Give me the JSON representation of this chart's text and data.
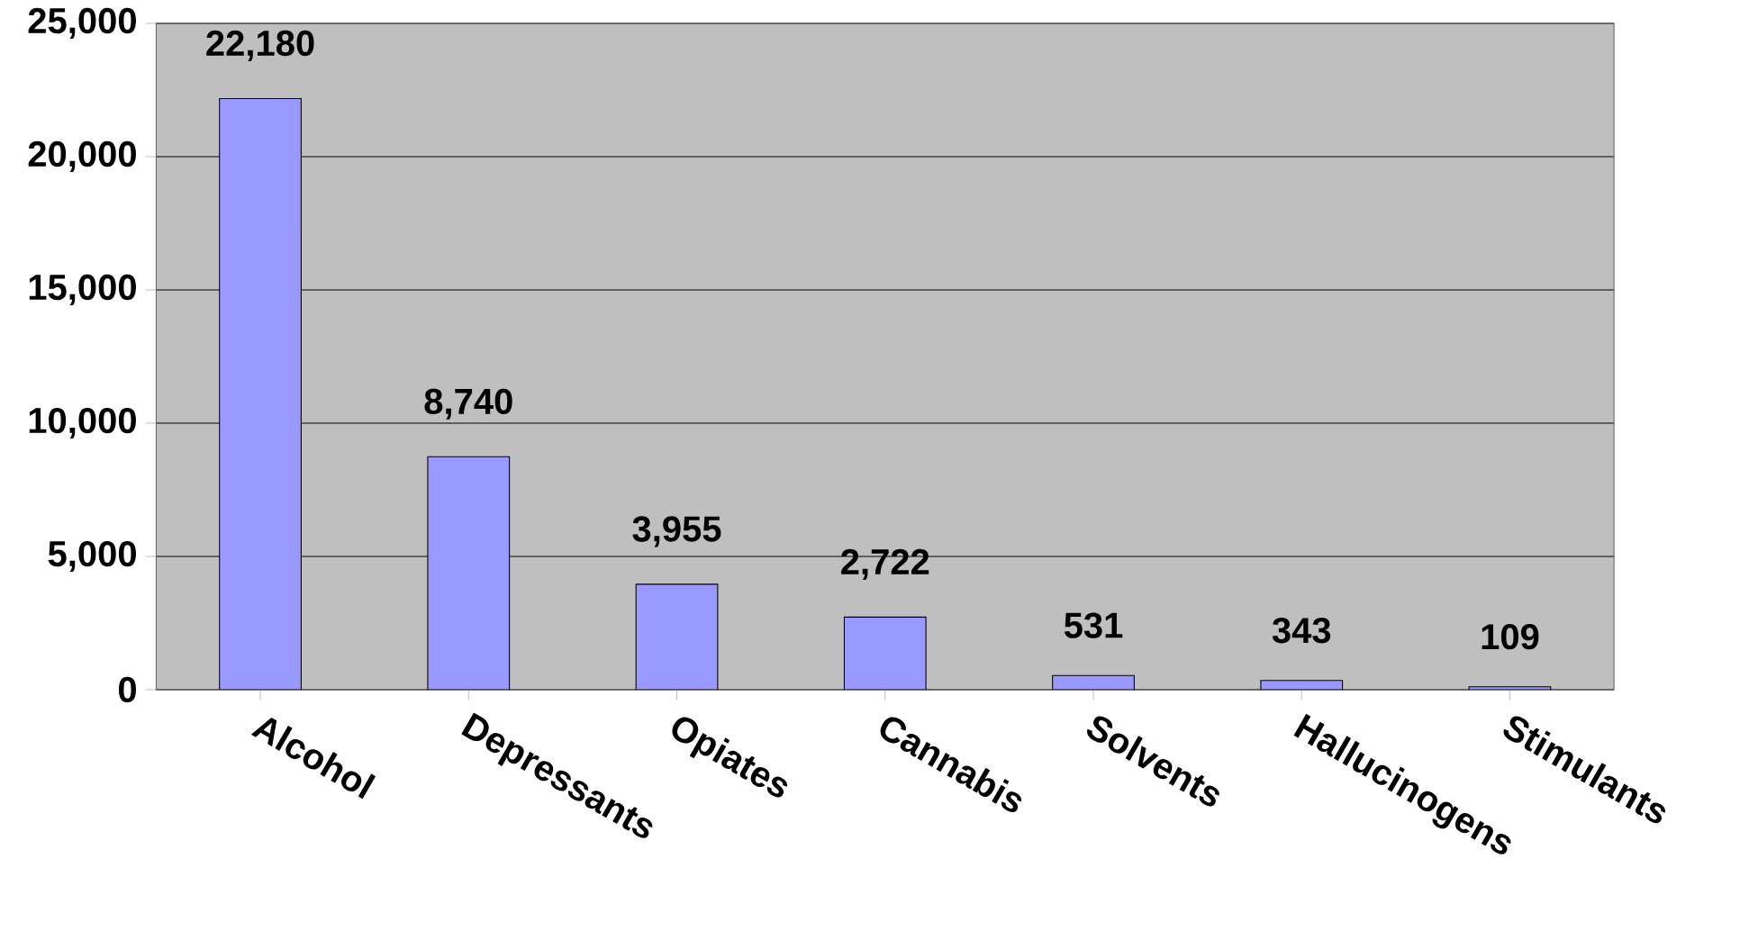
{
  "chart_data": {
    "type": "bar",
    "categories": [
      "Alcohol",
      "Depressants",
      "Opiates",
      "Cannabis",
      "Solvents",
      "Hallucinogens",
      "Stimulants"
    ],
    "values": [
      22180,
      8740,
      3955,
      2722,
      531,
      343,
      109
    ],
    "value_labels": [
      "22,180",
      "8,740",
      "3,955",
      "2,722",
      "531",
      "343",
      "109"
    ],
    "color": "#9999ff",
    "ylim": [
      0,
      25000
    ],
    "yticks": [
      {
        "value": 0,
        "label": "0"
      },
      {
        "value": 5000,
        "label": "5,000"
      },
      {
        "value": 10000,
        "label": "10,000"
      },
      {
        "value": 15000,
        "label": "15,000"
      },
      {
        "value": 20000,
        "label": "20,000"
      },
      {
        "value": 25000,
        "label": "25,000"
      }
    ],
    "grid": "y"
  }
}
